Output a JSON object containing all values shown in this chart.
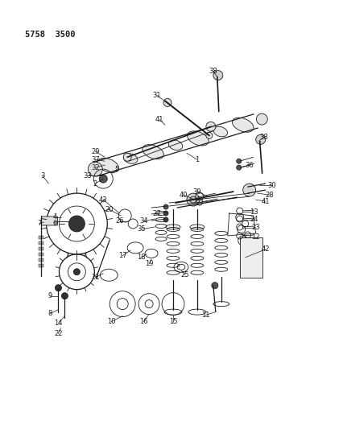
{
  "title": "5758  3500",
  "bg_color": "#ffffff",
  "text_color": "#1a1a1a",
  "line_color": "#1a1a1a",
  "fig_width": 4.27,
  "fig_height": 5.33,
  "dpi": 100,
  "gray": "#888888",
  "light_gray": "#bbbbbb"
}
